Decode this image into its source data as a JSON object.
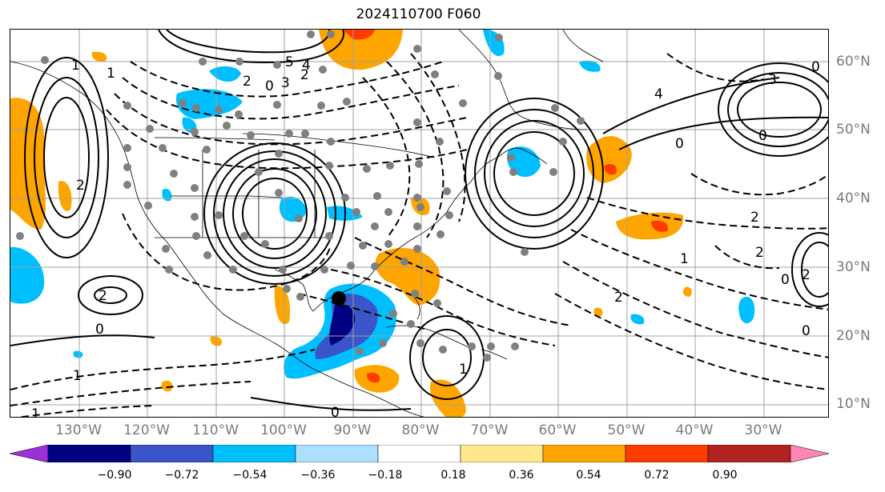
{
  "title": "2024110700 F060",
  "map": {
    "lat_labels": [
      "60°N",
      "50°N",
      "40°N",
      "30°N",
      "20°N",
      "10°N"
    ],
    "lon_labels": [
      "130°W",
      "120°W",
      "110°W",
      "100°W",
      "90°W",
      "80°W",
      "70°W",
      "60°W",
      "50°W",
      "40°W",
      "30°W"
    ],
    "contour_labels": [
      "1",
      "1",
      "2",
      "3",
      "4",
      "5",
      "2",
      "0",
      "4",
      "3",
      "0",
      "2",
      "2",
      "0",
      "2",
      "1",
      "0",
      "1",
      "0",
      "2",
      "0",
      "1",
      "1",
      "0",
      "2",
      "2",
      "0"
    ],
    "background_color": "#ffffff",
    "gridline_color": "#a0a0a0",
    "coastline_color": "#000000",
    "station_marker_color": "#808080",
    "center_marker_color": "#000000"
  },
  "colorbar": {
    "ticks": [
      "−0.90",
      "−0.72",
      "−0.54",
      "−0.36",
      "−0.18",
      "0.18",
      "0.36",
      "0.54",
      "0.72",
      "0.90"
    ],
    "colors": [
      "#9b30d9",
      "#000080",
      "#3a55c8",
      "#00bfff",
      "#addfff",
      "#ffffff",
      "#ffe88a",
      "#ffa500",
      "#ff3c00",
      "#b22222",
      "#ff85b3"
    ],
    "extend": "both"
  }
}
